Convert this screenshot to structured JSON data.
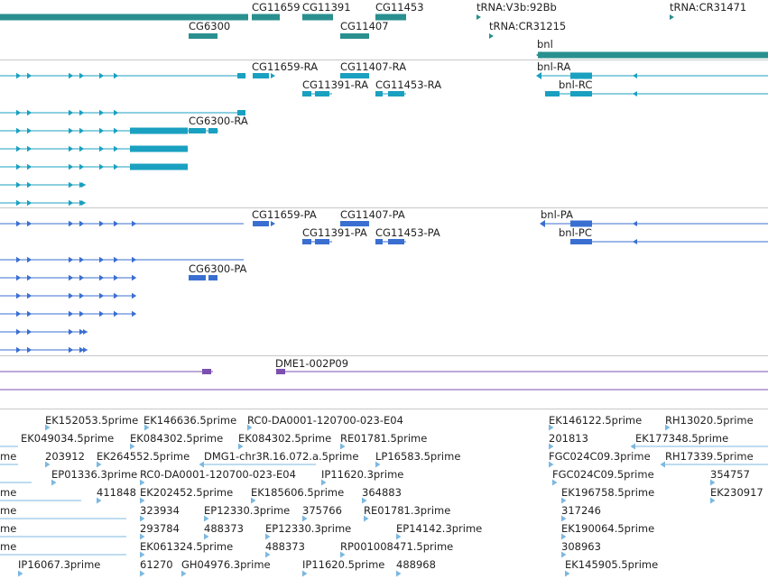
{
  "colors": {
    "gene": "#2a8f8f",
    "transcript_ra": "#1aa0c0",
    "transcript_pa": "#3a6fd1",
    "clone": "#7b50b0",
    "est": "#7cb8e0",
    "separator": "#c8c8c8"
  },
  "genes": {
    "labels": {
      "cg11659": "CG11659",
      "cg11391": "CG11391",
      "cg11453": "CG11453",
      "trna_v3b": "tRNA:V3b:92Bb",
      "trna_cr31471": "tRNA:CR31471",
      "cg6300": "CG6300",
      "cg11407": "CG11407",
      "trna_cr31215": "tRNA:CR31215",
      "bnl": "bnl"
    }
  },
  "transcripts": {
    "labels": {
      "cg11659_ra": "CG11659-RA",
      "cg11407_ra": "CG11407-RA",
      "bnl_ra": "bnl-RA",
      "cg11391_ra": "CG11391-RA",
      "cg11453_ra": "CG11453-RA",
      "bnl_rc": "bnl-RC",
      "cg6300_ra": "CG6300-RA"
    }
  },
  "proteins": {
    "labels": {
      "cg11659_pa": "CG11659-PA",
      "cg11407_pa": "CG11407-PA",
      "bnl_pa": "bnl-PA",
      "cg11391_pa": "CG11391-PA",
      "cg11453_pa": "CG11453-PA",
      "bnl_pc": "bnl-PC",
      "cg6300_pa": "CG6300-PA"
    }
  },
  "clones": {
    "label": "DME1-002P09"
  },
  "ests": {
    "labels": [
      "EK152053.5prime",
      "EK146636.5prime",
      "RC0-DA0001-120700-023-E04",
      "EK146122.5prime",
      "RH13020.5prime",
      "EK049034.5prime",
      "EK084302.5prime",
      "EK084302.5prime",
      "RE01781.5prime",
      "201813",
      "EK177348.5prime",
      "me",
      "203912",
      "EK264552.5prime",
      "DMG1-chr3R.16.072.a.5prime",
      "LP16583.5prime",
      "FGC024C09.3prime",
      "RH17339.5prime",
      "EP01336.3prime",
      "RC0-DA0001-120700-023-E04",
      "IP11620.3prime",
      "FGC024C09.5prime",
      "354757",
      "me",
      "411848",
      "EK202452.5prime",
      "EK185606.5prime",
      "364883",
      "EK196758.5prime",
      "EK230917",
      "me",
      "323934",
      "EP12330.3prime",
      "375766",
      "RE01781.3prime",
      "317246",
      "me",
      "293784",
      "488373",
      "EP12330.3prime",
      "EP14142.3prime",
      "EK190064.5prime",
      "me",
      "EK061324.5prime",
      "488373",
      "RP001008471.5prime",
      "308963",
      "IP16067.3prime",
      "61270",
      "GH04976.3prime",
      "IP11620.5prime",
      "488968",
      "EK145905.5prime"
    ]
  }
}
